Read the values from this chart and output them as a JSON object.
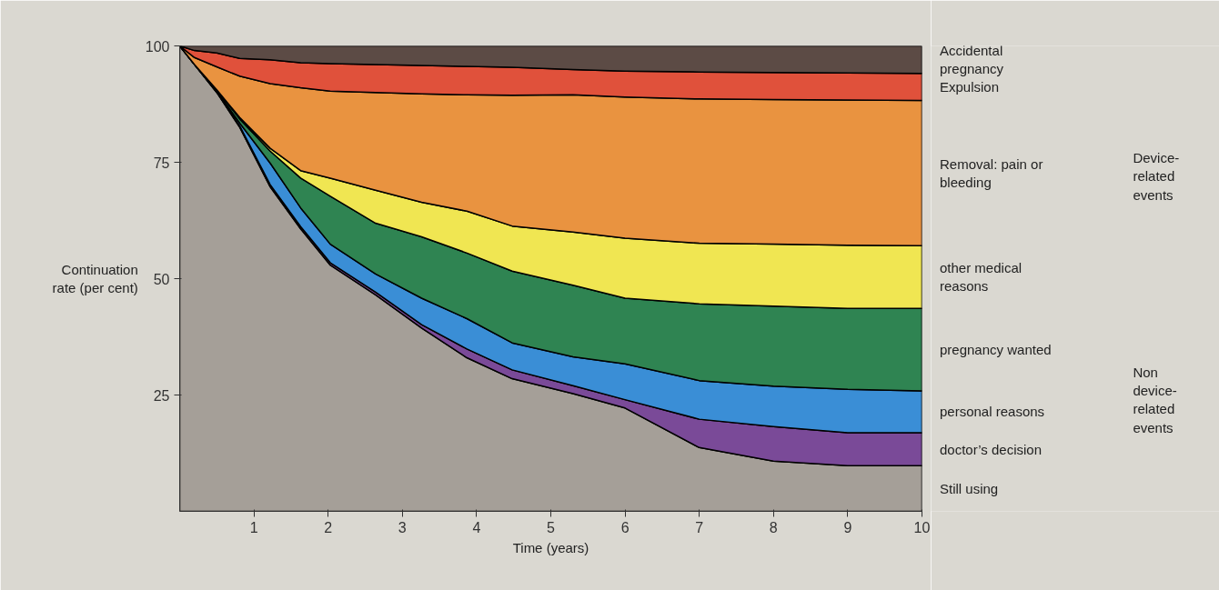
{
  "chart_data": {
    "type": "area",
    "stacked": true,
    "xlabel": "Time (years)",
    "ylabel": "Continuation rate (per cent)",
    "x": [
      0,
      0.2,
      0.5,
      0.81,
      1.22,
      1.63,
      2.03,
      2.64,
      3.26,
      3.87,
      4.48,
      5.3,
      6,
      7,
      8,
      9,
      10
    ],
    "xlim": [
      0,
      10
    ],
    "xticks": [
      1,
      2,
      3,
      4,
      5,
      6,
      7,
      8,
      9,
      10
    ],
    "ylim": [
      0,
      100
    ],
    "yticks": [
      25,
      50,
      75,
      100
    ],
    "series": [
      {
        "name": "Still using",
        "color": "#a59f98",
        "values": [
          100,
          96,
          90,
          82.5,
          69.7,
          60.7,
          52.9,
          46.5,
          39.4,
          33.0,
          28.5,
          25.3,
          22.2,
          13.7,
          10.8,
          9.8,
          9.8
        ]
      },
      {
        "name": "doctor’s decision",
        "color": "#7a4a98",
        "values": [
          0,
          0,
          0,
          0.3,
          0.5,
          0.5,
          0.5,
          0.6,
          0.7,
          1.9,
          1.9,
          1.7,
          1.8,
          6.1,
          7.4,
          7.1,
          7.1
        ]
      },
      {
        "name": "personal reasons",
        "color": "#3a8ed6",
        "values": [
          0,
          0,
          0.3,
          0.6,
          4.6,
          4.0,
          4.0,
          3.9,
          5.7,
          6.5,
          5.8,
          6.2,
          7.7,
          8.3,
          8.7,
          9.3,
          9.0
        ]
      },
      {
        "name": "pregnancy wanted",
        "color": "#2f8452",
        "values": [
          0,
          0,
          0.3,
          0.9,
          2.6,
          6.4,
          10.3,
          10.9,
          13.2,
          14.1,
          15.4,
          15.4,
          14.1,
          16.5,
          17.2,
          17.4,
          17.7
        ]
      },
      {
        "name": "other medical reasons",
        "color": "#f0e652",
        "values": [
          0,
          0,
          0,
          0.3,
          0.6,
          1.6,
          3.9,
          7.1,
          7.4,
          9.0,
          9.7,
          11.4,
          12.9,
          13.0,
          13.3,
          13.6,
          13.5
        ]
      },
      {
        "name": "Removal: pain or bleeding",
        "color": "#e99340",
        "values": [
          0,
          1.5,
          4.9,
          8.9,
          13.9,
          17.8,
          18.7,
          21.0,
          23.3,
          25.0,
          28.1,
          29.5,
          30.3,
          31.0,
          31.1,
          31.2,
          31.2
        ]
      },
      {
        "name": "Expulsion",
        "color": "#e0513b",
        "values": [
          0,
          1.5,
          3.0,
          3.8,
          5.1,
          5.4,
          5.9,
          6.0,
          6.1,
          6.1,
          6.0,
          5.4,
          5.6,
          5.8,
          5.8,
          5.8,
          5.8
        ]
      },
      {
        "name": "Accidental pregnancy",
        "color": "#5c4b45",
        "values": [
          0,
          1.0,
          1.5,
          2.7,
          3.0,
          3.6,
          3.8,
          4.0,
          4.2,
          4.4,
          4.6,
          5.1,
          5.4,
          5.6,
          5.7,
          5.8,
          5.9
        ]
      }
    ],
    "annotations": [
      "Device-related events",
      "Non device-related events"
    ]
  }
}
